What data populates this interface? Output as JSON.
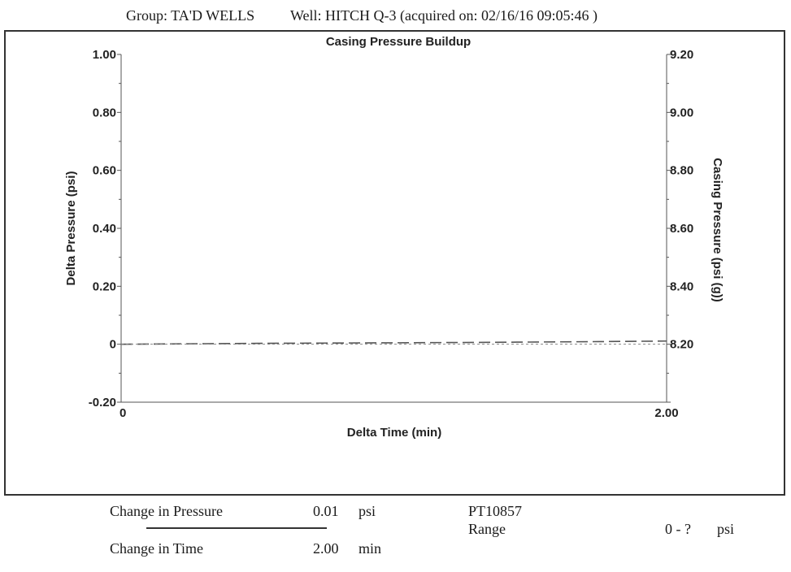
{
  "header": {
    "group": "Group: TA'D WELLS",
    "well": "Well: HITCH Q-3 (acquired on: 02/16/16 09:05:46 )"
  },
  "chart_data": {
    "type": "line",
    "title": "Casing Pressure Buildup",
    "xlabel": "Delta Time (min)",
    "ylabel_left": "Delta Pressure (psi)",
    "ylabel_right": "Casing Pressure (psi (g))",
    "xlim": [
      0,
      2.0
    ],
    "ylim_left": [
      -0.2,
      1.0
    ],
    "ylim_right": [
      8.0,
      9.2
    ],
    "x_ticks": [
      {
        "value": 0,
        "label": "0"
      },
      {
        "value": 2.0,
        "label": "2.00"
      }
    ],
    "y_ticks_left": [
      {
        "value": 1.0,
        "label": "1.00"
      },
      {
        "value": 0.8,
        "label": "0.80"
      },
      {
        "value": 0.6,
        "label": "0.60"
      },
      {
        "value": 0.4,
        "label": "0.40"
      },
      {
        "value": 0.2,
        "label": "0.20"
      },
      {
        "value": 0,
        "label": "0"
      },
      {
        "value": -0.2,
        "label": "-0.20"
      }
    ],
    "y_ticks_right": [
      {
        "value": 9.2,
        "label": "9.20"
      },
      {
        "value": 9.0,
        "label": "9.00"
      },
      {
        "value": 8.8,
        "label": "8.80"
      },
      {
        "value": 8.6,
        "label": "8.60"
      },
      {
        "value": 8.4,
        "label": "8.40"
      },
      {
        "value": 8.2,
        "label": "8.20"
      }
    ],
    "series": [
      {
        "style": "dashed",
        "color": "#555555",
        "axis": "left",
        "x": [
          0,
          0.25,
          0.5,
          0.75,
          1.0,
          1.25,
          1.5,
          1.75,
          2.0
        ],
        "y": [
          0,
          0.0015,
          0.003,
          0.004,
          0.005,
          0.006,
          0.0075,
          0.009,
          0.011
        ]
      },
      {
        "style": "dotted",
        "color": "#888888",
        "axis": "left",
        "x": [
          0,
          2.0
        ],
        "y": [
          0,
          0
        ]
      }
    ]
  },
  "footer": {
    "change_pressure_label": "Change in Pressure",
    "change_pressure_value": "0.01",
    "change_pressure_unit": "psi",
    "change_time_label": "Change in Time",
    "change_time_value": "2.00",
    "change_time_unit": "min",
    "sensor_id": "PT10857",
    "range_label": "Range",
    "range_value": "0 - ?",
    "range_unit": "psi"
  }
}
